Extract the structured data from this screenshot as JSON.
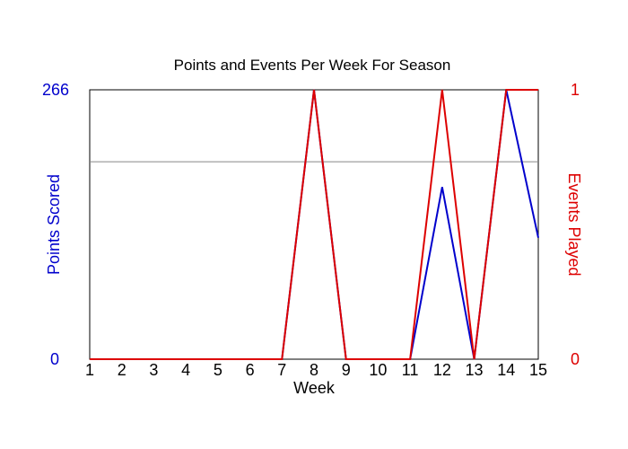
{
  "chart_data": {
    "type": "line",
    "title": "Points and Events Per Week For Season",
    "xlabel": "Week",
    "categories": [
      "1",
      "2",
      "3",
      "4",
      "5",
      "6",
      "7",
      "8",
      "9",
      "10",
      "11",
      "12",
      "13",
      "14",
      "15"
    ],
    "y_left": {
      "label": "Points Scored",
      "ticks": [
        "0",
        "266"
      ],
      "range": [
        0,
        266
      ],
      "color": "#0000cc"
    },
    "y_right": {
      "label": "Events Played",
      "ticks": [
        "0",
        "1"
      ],
      "range": [
        0,
        1
      ],
      "color": "#dd0000"
    },
    "reference_line": {
      "axis": "left",
      "value": 195
    },
    "series": [
      {
        "axis": "left",
        "color": "#0000cc",
        "values": [
          0,
          0,
          0,
          0,
          0,
          0,
          0,
          266,
          0,
          0,
          0,
          170,
          0,
          266,
          120
        ]
      },
      {
        "axis": "right",
        "color": "#dd0000",
        "values": [
          0,
          0,
          0,
          0,
          0,
          0,
          0,
          1,
          0,
          0,
          0,
          1,
          0,
          1,
          1
        ]
      }
    ],
    "grid": false,
    "legend": "none"
  }
}
